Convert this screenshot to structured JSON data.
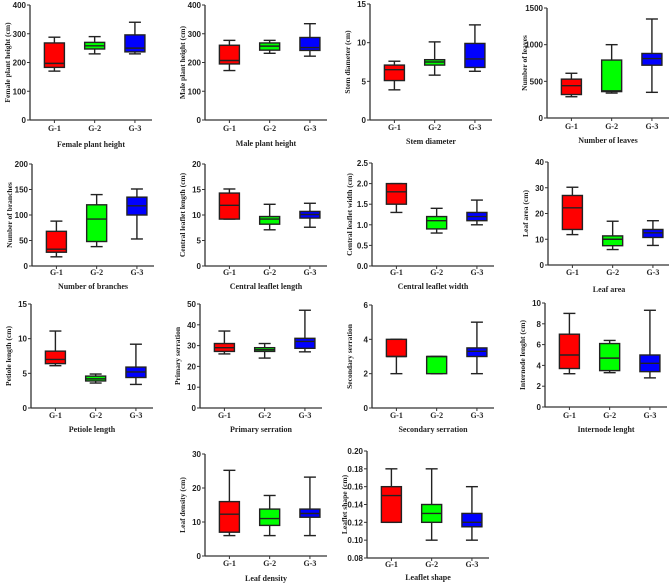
{
  "chart_data": [
    {
      "type": "box",
      "title": "Female plant height",
      "ylabel": "Female plant height (cm)",
      "ylim": [
        0,
        400
      ],
      "yticks": [
        0,
        100,
        200,
        300,
        400
      ],
      "categories": [
        "G-1",
        "G-2",
        "G-3"
      ],
      "boxes": [
        [
          170,
          183,
          197,
          268,
          288
        ],
        [
          230,
          247,
          258,
          270,
          290
        ],
        [
          230,
          237,
          250,
          296,
          340
        ]
      ]
    },
    {
      "type": "box",
      "title": "Male plant height",
      "ylabel": "Male plant height (cm)",
      "ylim": [
        0,
        400
      ],
      "yticks": [
        0,
        100,
        200,
        300,
        400
      ],
      "categories": [
        "G-1",
        "G-2",
        "G-3"
      ],
      "boxes": [
        [
          172,
          195,
          207,
          260,
          277
        ],
        [
          232,
          243,
          257,
          268,
          277
        ],
        [
          222,
          242,
          252,
          287,
          335
        ]
      ]
    },
    {
      "type": "box",
      "title": "Stem diameter",
      "ylabel": "Stem diameter (cm)",
      "ylim": [
        0,
        15
      ],
      "yticks": [
        0,
        5,
        10,
        15
      ],
      "categories": [
        "G-1",
        "G-2",
        "G-3"
      ],
      "boxes": [
        [
          3.9,
          5.1,
          6.5,
          7.1,
          7.6
        ],
        [
          5.8,
          7.1,
          7.5,
          7.8,
          10.1
        ],
        [
          6.3,
          6.8,
          7.9,
          9.9,
          12.3
        ]
      ]
    },
    {
      "type": "box",
      "title": "Number of leaves",
      "ylabel": "Number of leaves",
      "ylim": [
        0,
        1500
      ],
      "yticks": [
        0,
        500,
        1000,
        1500
      ],
      "categories": [
        "G-1",
        "G-2",
        "G-3"
      ],
      "boxes": [
        [
          290,
          320,
          440,
          530,
          610
        ],
        [
          340,
          360,
          370,
          790,
          1000
        ],
        [
          350,
          720,
          810,
          880,
          1350
        ]
      ]
    },
    {
      "type": "box",
      "title": "Number of branches",
      "ylabel": "Number of branches",
      "ylim": [
        0,
        200
      ],
      "yticks": [
        0,
        50,
        100,
        150,
        200
      ],
      "categories": [
        "G-1",
        "G-2",
        "G-3"
      ],
      "boxes": [
        [
          18,
          27,
          33,
          68,
          88
        ],
        [
          38,
          48,
          92,
          120,
          140
        ],
        [
          53,
          100,
          118,
          135,
          151
        ]
      ]
    },
    {
      "type": "box",
      "title": "Central leaflet length",
      "ylabel": "Central leaflet length (cm)",
      "ylim": [
        0,
        20
      ],
      "yticks": [
        0,
        5,
        10,
        15,
        20
      ],
      "categories": [
        "G-1",
        "G-2",
        "G-3"
      ],
      "boxes": [
        [
          9.2,
          9.2,
          11.9,
          14.3,
          15.1
        ],
        [
          7.1,
          8.2,
          9.2,
          9.7,
          12.1
        ],
        [
          7.6,
          9.4,
          10.1,
          10.7,
          12.3
        ]
      ]
    },
    {
      "type": "box",
      "title": "Central leaflet width",
      "ylabel": "Central leaflet width (cm)",
      "ylim": [
        0,
        2.5
      ],
      "yticks": [
        "0.0",
        "0.5",
        "1.0",
        "1.5",
        "2.0",
        "2.5"
      ],
      "categories": [
        "G-1",
        "G-2",
        "G-3"
      ],
      "boxes": [
        [
          1.3,
          1.5,
          1.8,
          2.0,
          2.0
        ],
        [
          0.8,
          0.9,
          1.1,
          1.2,
          1.4
        ],
        [
          1.0,
          1.1,
          1.2,
          1.3,
          1.6
        ]
      ]
    },
    {
      "type": "box",
      "title": "Leaf area",
      "ylabel": "Leaf area (cm)",
      "ylim": [
        0,
        40
      ],
      "yticks": [
        0,
        10,
        20,
        30,
        40
      ],
      "categories": [
        "G-1",
        "G-2",
        "G-3"
      ],
      "boxes": [
        [
          11.8,
          13.8,
          22.2,
          27.0,
          30.2
        ],
        [
          6,
          7.5,
          10,
          11.3,
          17
        ],
        [
          7.6,
          10.7,
          12.5,
          13.8,
          17.2
        ]
      ]
    },
    {
      "type": "box",
      "title": "Petiole length",
      "ylabel": "Petiole length (cm)",
      "ylim": [
        0,
        15
      ],
      "yticks": [
        0,
        5,
        10,
        15
      ],
      "categories": [
        "G-1",
        "G-2",
        "G-3"
      ],
      "boxes": [
        [
          6.1,
          6.4,
          7.0,
          8.2,
          11.1
        ],
        [
          3.6,
          3.9,
          4.2,
          4.6,
          4.9
        ],
        [
          3.4,
          4.4,
          5.2,
          5.9,
          9.2
        ]
      ]
    },
    {
      "type": "box",
      "title": "Primary serration",
      "ylabel": "Primary serration",
      "ylim": [
        0,
        50
      ],
      "yticks": [
        0,
        10,
        20,
        30,
        40,
        50
      ],
      "categories": [
        "G-1",
        "G-2",
        "G-3"
      ],
      "boxes": [
        [
          26,
          27.2,
          29,
          31,
          37
        ],
        [
          24,
          27.2,
          28,
          29,
          31
        ],
        [
          27,
          28.7,
          32,
          33.5,
          47
        ]
      ]
    },
    {
      "type": "box",
      "title": "Secondary serration",
      "ylabel": "Secondary serration",
      "ylim": [
        0,
        6
      ],
      "yticks": [
        0,
        2,
        4,
        6
      ],
      "categories": [
        "G-1",
        "G-2",
        "G-3"
      ],
      "boxes": [
        [
          2,
          3,
          3,
          4,
          4
        ],
        [
          2,
          2,
          3,
          3,
          3
        ],
        [
          2,
          3,
          3.3,
          3.5,
          5
        ]
      ]
    },
    {
      "type": "box",
      "title": "Internode lenght",
      "ylabel": "Internode lenght (cm)",
      "ylim": [
        0,
        10
      ],
      "yticks": [
        0,
        2,
        4,
        6,
        8,
        10
      ],
      "categories": [
        "G-1",
        "G-2",
        "G-3"
      ],
      "boxes": [
        [
          3.2,
          3.7,
          5.0,
          7.0,
          9.0
        ],
        [
          3.3,
          3.5,
          4.7,
          6.1,
          6.4
        ],
        [
          2.8,
          3.4,
          4.2,
          5.0,
          9.3
        ]
      ]
    },
    {
      "type": "box",
      "title": "Leaf density",
      "ylabel": "Leaf density (cm)",
      "ylim": [
        0,
        30
      ],
      "yticks": [
        0,
        10,
        20,
        30
      ],
      "categories": [
        "G-1",
        "G-2",
        "G-3"
      ],
      "boxes": [
        [
          6,
          7,
          12.3,
          16,
          25.2
        ],
        [
          6,
          9,
          11,
          13.8,
          17.8
        ],
        [
          6,
          11.4,
          12.5,
          13.8,
          23.2
        ]
      ]
    },
    {
      "type": "box",
      "title": "Leaflet shape",
      "ylabel": "Leaflet shape (cm)",
      "ylim": [
        0.08,
        0.2
      ],
      "yticks": [
        "0.08",
        "0.10",
        "0.12",
        "0.14",
        "0.16",
        "0.18",
        "0.20"
      ],
      "categories": [
        "G-1",
        "G-2",
        "G-3"
      ],
      "boxes": [
        [
          0.12,
          0.12,
          0.15,
          0.16,
          0.18
        ],
        [
          0.1,
          0.12,
          0.13,
          0.14,
          0.18
        ],
        [
          0.1,
          0.115,
          0.12,
          0.13,
          0.16
        ]
      ]
    }
  ],
  "colors": {
    "G-1": "#ff0000",
    "G-2": "#00ff00",
    "G-3": "#0000ff"
  }
}
